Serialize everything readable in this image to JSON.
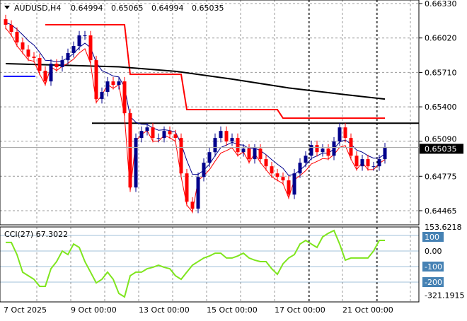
{
  "header": {
    "symbol": "AUDUSD,H4",
    "open": "0.64994",
    "high": "0.65065",
    "low": "0.64994",
    "close": "0.65035"
  },
  "cci_label": "CCI(27) 67.3022",
  "colors": {
    "bull": "#00008b",
    "bear": "#ff0000",
    "ma_fast": "#00008b",
    "ma_band": "#ff0000",
    "ma_slow": "#000000",
    "cci": "#7fe51e",
    "level_box": "#4682b4"
  },
  "chart_data": {
    "type": "candlestick",
    "title": "AUDUSD,H4",
    "price_axis": {
      "ticks": [
        "0.66330",
        "0.66020",
        "0.65710",
        "0.65400",
        "0.65090",
        "0.64775",
        "0.64465"
      ],
      "range": [
        0.64465,
        0.6633
      ]
    },
    "current_price": "0.65035",
    "x_labels": [
      "7 Oct 2025",
      "9 Oct 00:00",
      "13 Oct 00:00",
      "15 Oct 00:00",
      "17 Oct 00:00",
      "21 Oct 00:00"
    ],
    "closes": [
      0.66139,
      0.66075,
      0.6598,
      0.65916,
      0.65852,
      0.6584,
      0.65725,
      0.65629,
      0.65789,
      0.65757,
      0.6582,
      0.65884,
      0.65948,
      0.66043,
      0.66043,
      0.6582,
      0.6547,
      0.65534,
      0.65629,
      0.65597,
      0.65629,
      0.65343,
      0.64674,
      0.6512,
      0.65183,
      0.65215,
      0.6512,
      0.6512,
      0.65183,
      0.65152,
      0.6512,
      0.64801,
      0.64546,
      0.64483,
      0.64769,
      0.64897,
      0.64992,
      0.6512,
      0.65183,
      0.65088,
      0.6512,
      0.64992,
      0.65024,
      0.64929,
      0.65024,
      0.64929,
      0.64865,
      0.64801,
      0.64769,
      0.64738,
      0.6461,
      0.64801,
      0.64897,
      0.6496,
      0.65056,
      0.64992,
      0.65024,
      0.6496,
      0.65088,
      0.65215,
      0.6512,
      0.6496,
      0.64865,
      0.64929,
      0.64865,
      0.64865,
      0.64929,
      0.65035
    ],
    "stepped_line": [
      [
        7,
        0.66139
      ],
      [
        21,
        0.66139
      ],
      [
        22,
        0.65693
      ],
      [
        31,
        0.65693
      ],
      [
        32,
        0.65375
      ],
      [
        48,
        0.65375
      ],
      [
        49,
        0.65298
      ],
      [
        67,
        0.65298
      ]
    ],
    "horizontal_level": 0.65253,
    "short_level": 0.65674,
    "slow_ma": [
      [
        0,
        0.65789
      ],
      [
        20,
        0.6576
      ],
      [
        30,
        0.6572
      ],
      [
        40,
        0.6565
      ],
      [
        50,
        0.6557
      ],
      [
        60,
        0.6551
      ],
      [
        67,
        0.6547
      ]
    ],
    "cci": {
      "period": 27,
      "value": 67.3022,
      "max": "153.6218",
      "min": "-321.1915",
      "levels": [
        "100",
        "0.00",
        "-100",
        "-200"
      ],
      "values": [
        55,
        55,
        -23,
        -136,
        -159,
        -182,
        -227,
        -227,
        -114,
        -68,
        0,
        -23,
        45,
        23,
        -68,
        -136,
        -205,
        -182,
        -136,
        -182,
        -273,
        -295,
        -159,
        -136,
        -136,
        -114,
        -105,
        -91,
        -105,
        -114,
        -159,
        -182,
        -136,
        -91,
        -68,
        -45,
        -32,
        -14,
        -14,
        -45,
        -45,
        -32,
        -14,
        -45,
        -59,
        -68,
        -68,
        -114,
        -150,
        -82,
        -45,
        -23,
        45,
        68,
        45,
        23,
        91,
        114,
        132,
        45,
        -59,
        -45,
        -45,
        -45,
        -45,
        0,
        68,
        68
      ]
    }
  }
}
